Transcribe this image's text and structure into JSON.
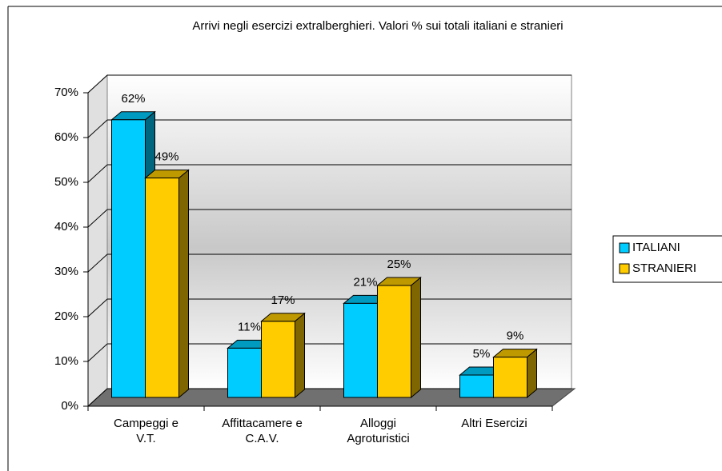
{
  "chart_data": {
    "type": "bar3d",
    "title": "Arrivi negli esercizi extralberghieri. Valori % sui totali italiani e stranieri",
    "categories": [
      "Campeggi e V.T.",
      "Affittacamere e C.A.V.",
      "Alloggi Agroturistici",
      "Altri Esercizi"
    ],
    "series": [
      {
        "name": "ITALIANI",
        "color": "#00ccff",
        "values": [
          62,
          11,
          21,
          5
        ],
        "value_labels": [
          "62%",
          "11%",
          "21%",
          "5%"
        ]
      },
      {
        "name": "STRANIERI",
        "color": "#ffcc00",
        "values": [
          49,
          17,
          25,
          9
        ],
        "value_labels": [
          "49%",
          "17%",
          "25%",
          "9%"
        ]
      }
    ],
    "ylim": [
      0,
      70
    ],
    "yticks": [
      {
        "value": 0,
        "label": "0%"
      },
      {
        "value": 10,
        "label": "10%"
      },
      {
        "value": 20,
        "label": "20%"
      },
      {
        "value": 30,
        "label": "30%"
      },
      {
        "value": 40,
        "label": "40%"
      },
      {
        "value": 50,
        "label": "50%"
      },
      {
        "value": 60,
        "label": "60%"
      },
      {
        "value": 70,
        "label": "70%"
      }
    ],
    "grid": true,
    "legend": "right"
  }
}
